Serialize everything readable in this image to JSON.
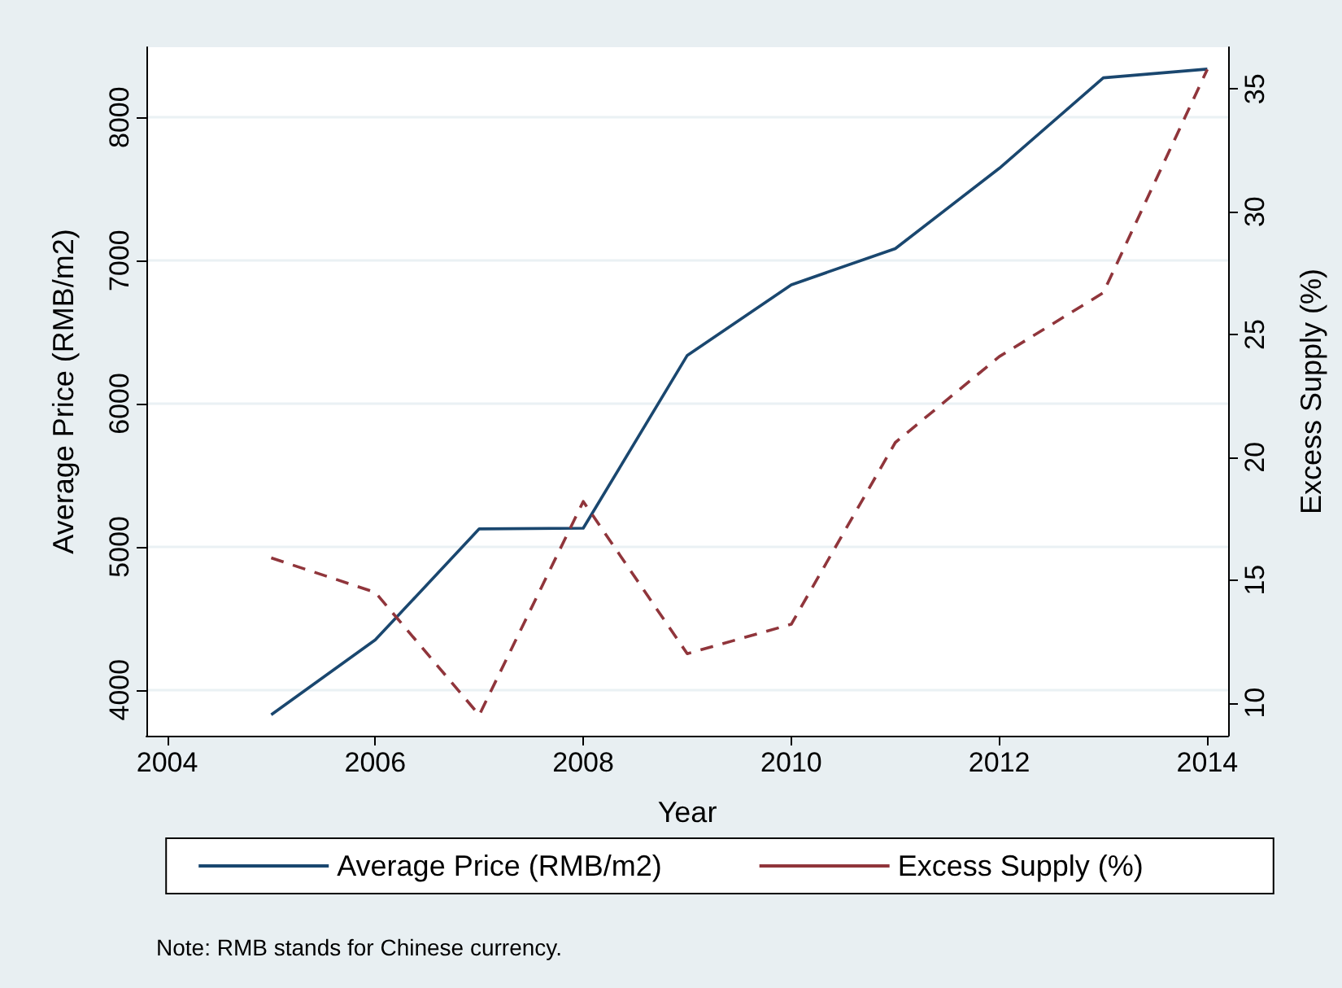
{
  "chart_data": {
    "type": "line",
    "xlabel": "Year",
    "ylabel": "Average Price (RMB/m2)",
    "y2label": "Excess Supply (%)",
    "x": [
      2005,
      2006,
      2007,
      2008,
      2009,
      2010,
      2011,
      2012,
      2013,
      2014
    ],
    "series": [
      {
        "name": "Average Price (RMB/m2)",
        "color": "#1a476f",
        "line_style": "solid",
        "values": [
          3826,
          4349,
          5125,
          5130,
          6337,
          6830,
          7083,
          7644,
          8276,
          8337
        ]
      },
      {
        "name": "Excess Supply (%)",
        "color": "#90353b",
        "line_style": "dashed",
        "axis": "y2",
        "values": [
          15.9,
          14.5,
          9.5,
          18.2,
          12.0,
          13.2,
          20.6,
          24.1,
          26.7,
          35.8
        ]
      }
    ],
    "xlim": [
      2003.8,
      2014.2
    ],
    "xticks": [
      2004,
      2006,
      2008,
      2010,
      2012,
      2014
    ],
    "ylim": [
      3680,
      8490
    ],
    "yticks": [
      4000,
      5000,
      6000,
      7000,
      8000
    ],
    "y2lim": [
      8.66,
      36.7
    ],
    "y2ticks": [
      10,
      15,
      20,
      25,
      30,
      35
    ],
    "grid": "y",
    "legend": "bottom",
    "marker": "none",
    "annotations": [
      "Note: RMB stands for Chinese currency."
    ]
  }
}
